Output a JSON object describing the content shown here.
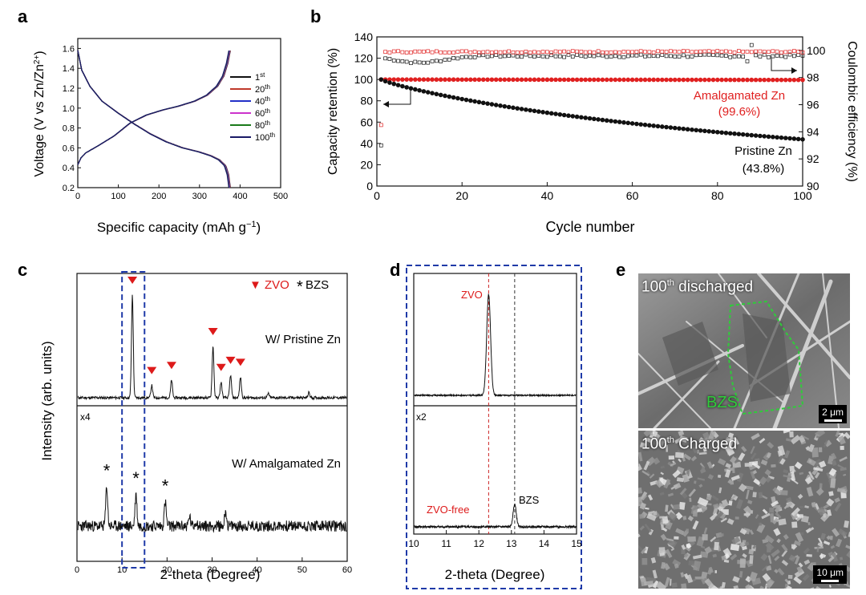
{
  "panel_labels": [
    "a",
    "b",
    "c",
    "d",
    "e"
  ],
  "colors": {
    "pristine": "#111111",
    "amalgamated": "#e02020",
    "zvo_marker": "#dd1a1a",
    "frame": "#1f3aa8",
    "bzs_outline": "#2fcc3a"
  },
  "chart_data": [
    {
      "id": "a",
      "type": "line",
      "xlabel": "Specific capacity (mAh g",
      "xlabel_sup": "−1",
      "xlabel_tail": ")",
      "ylabel": "Voltage (V vs Zn/Zn",
      "ylabel_sup": "2+",
      "ylabel_tail": ")",
      "xlim": [
        0,
        500
      ],
      "ylim": [
        0.2,
        1.7
      ],
      "xticks": [
        0,
        100,
        200,
        300,
        400,
        500
      ],
      "yticks": [
        0.2,
        0.4,
        0.6,
        0.8,
        1.0,
        1.2,
        1.4,
        1.6
      ],
      "legend_position": "right",
      "series": [
        {
          "name": "1",
          "sup": "st",
          "color": "#111111",
          "offset": 0
        },
        {
          "name": "20",
          "sup": "th",
          "color": "#c0392b",
          "offset": -2
        },
        {
          "name": "40",
          "sup": "th",
          "color": "#2230c8",
          "offset": -4
        },
        {
          "name": "60",
          "sup": "th",
          "color": "#cc33cc",
          "offset": -6
        },
        {
          "name": "80",
          "sup": "th",
          "color": "#1a7a1a",
          "offset": -8
        },
        {
          "name": "100",
          "sup": "th",
          "color": "#1a1a66",
          "offset": -10
        }
      ],
      "discharge": {
        "x": [
          0,
          10,
          30,
          60,
          100,
          140,
          180,
          220,
          260,
          300,
          330,
          350,
          365,
          372,
          376
        ],
        "y": [
          1.58,
          1.38,
          1.22,
          1.07,
          0.95,
          0.84,
          0.74,
          0.66,
          0.6,
          0.56,
          0.52,
          0.48,
          0.42,
          0.33,
          0.2
        ]
      },
      "charge": {
        "x": [
          0,
          8,
          20,
          50,
          90,
          130,
          170,
          210,
          250,
          290,
          320,
          345,
          360,
          370,
          377
        ],
        "y": [
          0.43,
          0.5,
          0.55,
          0.62,
          0.72,
          0.85,
          0.93,
          0.98,
          1.02,
          1.07,
          1.13,
          1.22,
          1.32,
          1.45,
          1.6
        ]
      }
    },
    {
      "id": "b",
      "type": "scatter",
      "xlabel": "Cycle number",
      "ylabel": "Capacity retention (%)",
      "ylabel2": "Coulombic efficiency (%)",
      "xlim": [
        0,
        100
      ],
      "ylim": [
        0,
        140
      ],
      "ylim2": [
        90,
        101
      ],
      "xticks": [
        0,
        20,
        40,
        60,
        80,
        100
      ],
      "yticks": [
        0,
        20,
        40,
        60,
        80,
        100,
        120,
        140
      ],
      "yticks2": [
        90,
        92,
        94,
        96,
        98,
        100
      ],
      "annotations": [
        {
          "text": "Amalgamated Zn",
          "color": "#e02020"
        },
        {
          "text": "(99.6%)",
          "color": "#e02020"
        },
        {
          "text": "Pristine Zn",
          "color": "#111111"
        },
        {
          "text": "(43.8%)",
          "color": "#111111"
        }
      ],
      "retention_amalgamated": {
        "start": 100,
        "end": 99.6
      },
      "retention_pristine": {
        "start": 100,
        "end": 43.8
      },
      "ce_amalgamated": {
        "first": 94.5,
        "steady": 99.9
      },
      "ce_pristine": {
        "first": 93.0,
        "steady": 99.6,
        "dip_min": 99.1,
        "dip_cycle": 10
      }
    },
    {
      "id": "c",
      "type": "line",
      "xlabel": "2-theta (Degree)",
      "ylabel": "Intensity (arb. units)",
      "xlim": [
        0,
        60
      ],
      "xticks": [
        0,
        10,
        20,
        30,
        40,
        50,
        60
      ],
      "legend": [
        {
          "symbol": "▼",
          "text": "ZVO"
        },
        {
          "symbol": "*",
          "text": "BZS"
        }
      ],
      "traces": [
        {
          "label": "W/ Pristine Zn",
          "peaks": [
            [
              12.3,
              1.0
            ],
            [
              16.6,
              0.12
            ],
            [
              21.0,
              0.17
            ],
            [
              30.2,
              0.5
            ],
            [
              32.0,
              0.15
            ],
            [
              34.1,
              0.22
            ],
            [
              36.3,
              0.2
            ],
            [
              42.5,
              0.04
            ],
            [
              51.5,
              0.05
            ]
          ],
          "markers": [
            12.3,
            16.6,
            21.0,
            30.2,
            32.0,
            34.1,
            36.3
          ]
        },
        {
          "label": "W/ Amalgamated Zn",
          "scale_label": "x4",
          "peaks": [
            [
              6.6,
              0.62
            ],
            [
              13.1,
              0.5
            ],
            [
              19.6,
              0.38
            ],
            [
              25.0,
              0.15
            ],
            [
              33.0,
              0.25
            ],
            [
              26.5,
              0.08
            ]
          ],
          "stars": [
            6.6,
            13.1,
            19.6
          ]
        }
      ],
      "highlight_range": [
        10,
        15
      ]
    },
    {
      "id": "d",
      "type": "line",
      "xlabel": "2-theta (Degree)",
      "xlim": [
        10,
        15
      ],
      "xticks": [
        10,
        11,
        12,
        13,
        14,
        15
      ],
      "traces": [
        {
          "label": "ZVO",
          "peaks": [
            [
              12.3,
              1.0
            ]
          ]
        },
        {
          "label": "ZVO-free",
          "scale_label": "x2",
          "peaks": [
            [
              13.1,
              0.35
            ]
          ],
          "peak_label": "BZS"
        }
      ],
      "ref_lines": [
        12.3,
        13.1
      ]
    }
  ],
  "sem": {
    "top": {
      "label": "100",
      "sup": "th",
      "tail": " discharged",
      "region_label": "BZS",
      "scalebar": "2 μm"
    },
    "bottom": {
      "label": "100",
      "sup": "th",
      "tail": " Charged",
      "scalebar": "10 μm"
    }
  }
}
